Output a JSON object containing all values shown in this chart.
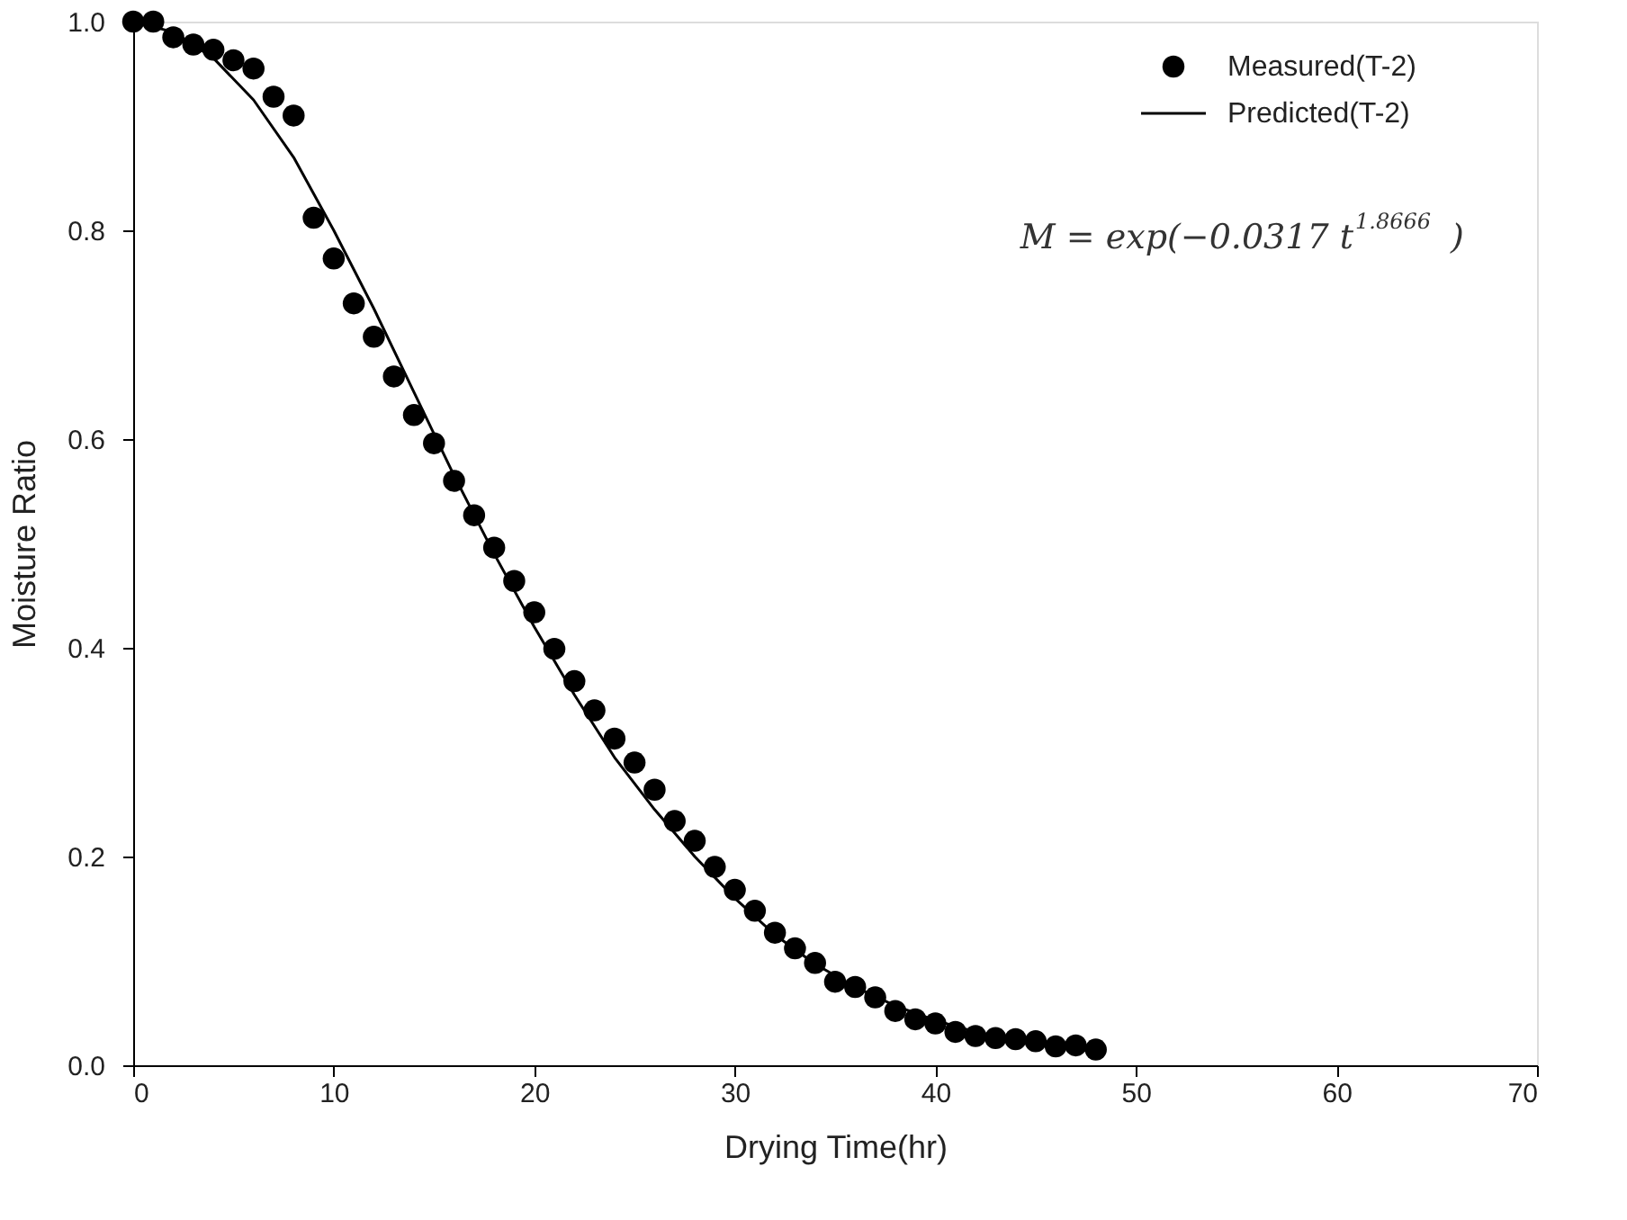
{
  "chart_data": {
    "type": "scatter",
    "xlabel": "Drying Time(hr)",
    "ylabel": "Moisture Ratio",
    "xlim": [
      0,
      70
    ],
    "xticks": [
      0,
      10,
      20,
      30,
      40,
      50,
      60,
      70
    ],
    "ylim": [
      0,
      1
    ],
    "yticks": [
      {
        "value": 0,
        "label": "0.0"
      },
      {
        "value": 0.2,
        "label": "0.2"
      },
      {
        "value": 0.4,
        "label": "0.4"
      },
      {
        "value": 0.6,
        "label": "0.6"
      },
      {
        "value": 0.8,
        "label": "0.8"
      },
      {
        "value": 1,
        "label": "1.0"
      }
    ],
    "grid": false,
    "legend": "top right",
    "annotations": [
      "M = exp(−0.0317 t$^{1.8666}$)"
    ],
    "series": [
      {
        "name": "Measured(T-2)",
        "marker": "circle",
        "color": "#000000",
        "x": [
          0,
          1,
          2,
          3,
          4,
          5,
          6,
          7,
          8,
          9,
          10,
          11,
          12,
          13,
          14,
          15,
          16,
          17,
          18,
          19,
          20,
          21,
          22,
          23,
          24,
          25,
          26,
          27,
          28,
          29,
          30,
          31,
          32,
          33,
          34,
          35,
          36,
          37,
          38,
          39,
          40,
          41,
          42,
          43,
          44,
          45,
          46,
          47,
          48
        ],
        "values": [
          1.0,
          1.0,
          0.985,
          0.978,
          0.973,
          0.963,
          0.955,
          0.928,
          0.91,
          0.812,
          0.773,
          0.73,
          0.698,
          0.66,
          0.623,
          0.596,
          0.56,
          0.527,
          0.496,
          0.464,
          0.434,
          0.399,
          0.368,
          0.34,
          0.313,
          0.29,
          0.264,
          0.234,
          0.215,
          0.19,
          0.168,
          0.148,
          0.127,
          0.112,
          0.098,
          0.08,
          0.075,
          0.065,
          0.052,
          0.044,
          0.04,
          0.032,
          0.028,
          0.026,
          0.025,
          0.023,
          0.018,
          0.019,
          0.015
        ]
      },
      {
        "name": "Predicted(T-2)",
        "type": "line",
        "marker": "none",
        "color": "#000000",
        "line_style": "solid",
        "x": [
          0,
          2,
          4,
          6,
          8,
          10,
          12,
          14,
          16,
          18,
          20,
          22,
          24,
          26,
          28,
          30,
          32,
          34,
          36,
          38,
          40,
          42,
          44,
          46,
          48
        ],
        "values": [
          1.0,
          0.99,
          0.965,
          0.925,
          0.87,
          0.8,
          0.725,
          0.645,
          0.565,
          0.49,
          0.42,
          0.355,
          0.295,
          0.245,
          0.2,
          0.16,
          0.125,
          0.097,
          0.075,
          0.057,
          0.043,
          0.032,
          0.024,
          0.018,
          0.013
        ]
      }
    ]
  }
}
